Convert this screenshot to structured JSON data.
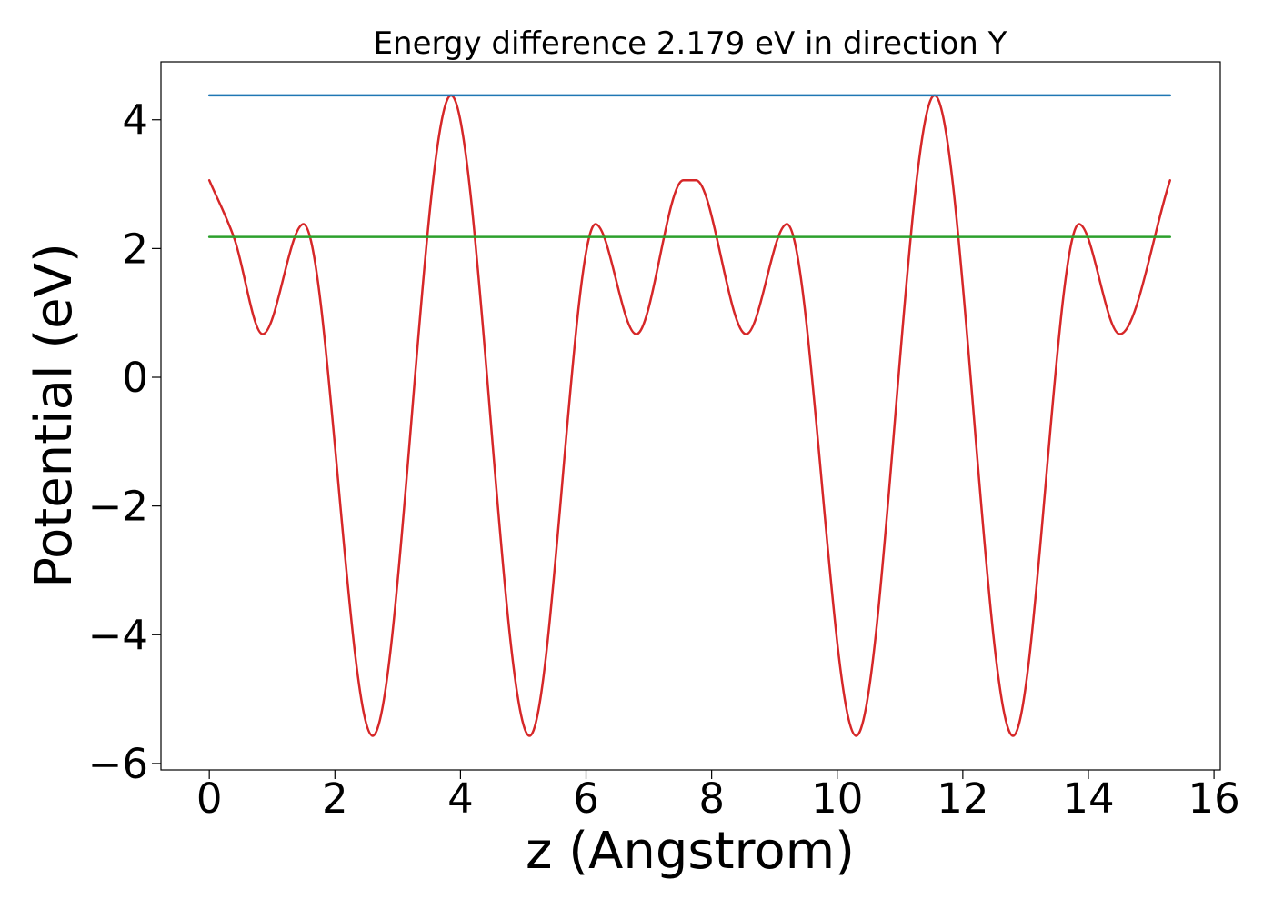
{
  "chart_data": {
    "type": "line",
    "title": "Energy difference 2.179 eV in direction Y",
    "xlabel": "z (Angstrom)",
    "ylabel": "Potential (eV)",
    "xlim": [
      -0.77,
      16.1
    ],
    "ylim": [
      -6.1,
      4.9
    ],
    "xticks": [
      0,
      2,
      4,
      6,
      8,
      10,
      12,
      14,
      16
    ],
    "yticks": [
      -6,
      -4,
      -2,
      0,
      2,
      4
    ],
    "xtick_labels": [
      "0",
      "2",
      "4",
      "6",
      "8",
      "10",
      "12",
      "14",
      "16"
    ],
    "ytick_labels": [
      "−6",
      "−4",
      "−2",
      "0",
      "2",
      "4"
    ],
    "grid": false,
    "series": [
      {
        "color": "#d62728",
        "x": [
          0.0,
          0.4,
          0.85,
          1.5,
          2.6,
          3.85,
          5.1,
          6.15,
          6.8,
          7.55,
          7.75,
          8.55,
          9.2,
          10.3,
          11.55,
          12.8,
          13.85,
          14.5,
          15.3
        ],
        "y": [
          3.06,
          2.15,
          0.67,
          2.38,
          -5.57,
          4.38,
          -5.57,
          2.38,
          0.67,
          3.06,
          3.06,
          0.67,
          2.38,
          -5.57,
          4.38,
          -5.57,
          2.38,
          0.67,
          3.06
        ]
      },
      {
        "color": "#1f77b4",
        "x": [
          0.0,
          15.3
        ],
        "y": [
          4.38,
          4.38
        ]
      },
      {
        "color": "#2ca02c",
        "x": [
          0.0,
          15.3
        ],
        "y": [
          2.18,
          2.18
        ]
      }
    ]
  }
}
